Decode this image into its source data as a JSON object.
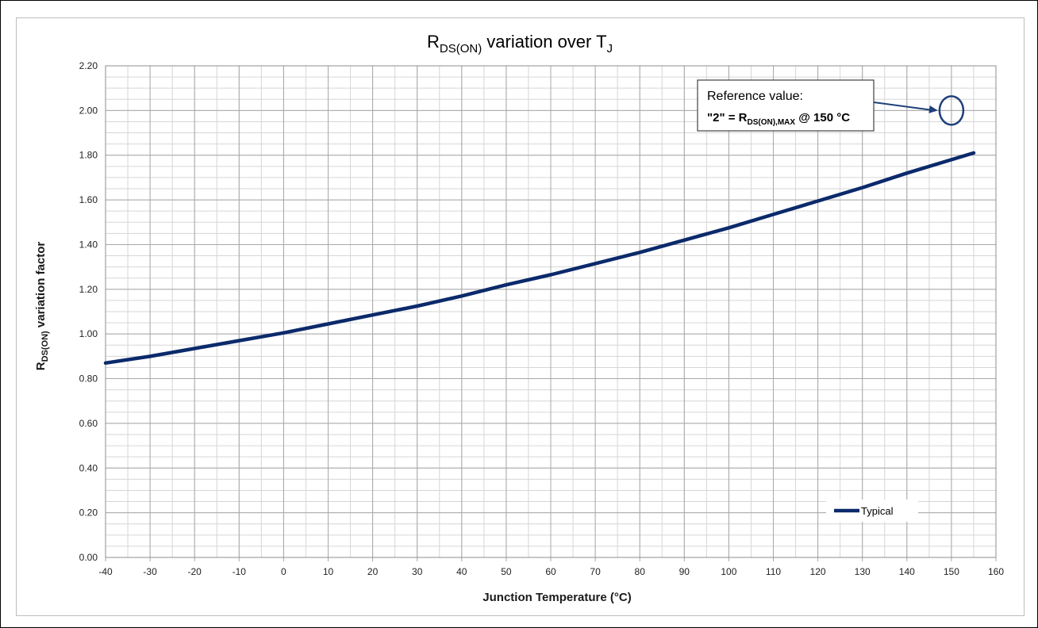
{
  "chart_data": {
    "type": "line",
    "title": {
      "main": "R",
      "sub": "DS(ON)",
      "rest": " variation over T",
      "sub2": "J"
    },
    "xlabel": "Junction Temperature (°C)",
    "ylabel": {
      "main": "R",
      "sub": "DS(ON)",
      "rest": " variation factor"
    },
    "xlim": [
      -40,
      160
    ],
    "ylim": [
      0,
      2.2
    ],
    "x_ticks": [
      "-40",
      "-30",
      "-20",
      "-10",
      "0",
      "10",
      "20",
      "30",
      "40",
      "50",
      "60",
      "70",
      "80",
      "90",
      "100",
      "110",
      "120",
      "130",
      "140",
      "150",
      "160"
    ],
    "y_ticks": [
      "0.00",
      "0.20",
      "0.40",
      "0.60",
      "0.80",
      "1.00",
      "1.20",
      "1.40",
      "1.60",
      "1.80",
      "2.00",
      "2.20"
    ],
    "grid": "major and minor",
    "series": [
      {
        "name": "Typical",
        "color": "#0b2a6b",
        "x": [
          -40,
          -30,
          -20,
          -10,
          0,
          10,
          20,
          30,
          40,
          50,
          60,
          70,
          80,
          90,
          100,
          110,
          120,
          130,
          140,
          150,
          155
        ],
        "y": [
          0.87,
          0.9,
          0.935,
          0.97,
          1.005,
          1.045,
          1.085,
          1.125,
          1.17,
          1.22,
          1.265,
          1.315,
          1.365,
          1.42,
          1.475,
          1.535,
          1.595,
          1.655,
          1.72,
          1.78,
          1.81
        ]
      }
    ],
    "legend": {
      "position": "bottom-right"
    },
    "annotation": {
      "line1": "Reference value:",
      "line2_prefix": "\"2\" = R",
      "line2_sub": "DS(ON),MAX",
      "line2_suffix": " @ 150 °C",
      "target": {
        "x": 150,
        "y": 2.0
      }
    }
  }
}
